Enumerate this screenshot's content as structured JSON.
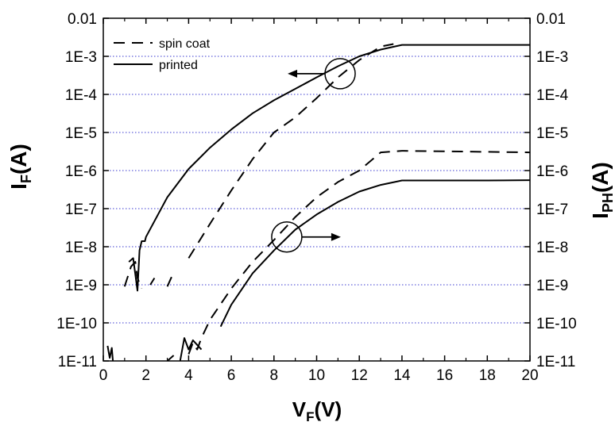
{
  "chart_data": {
    "type": "line",
    "xlabel": {
      "main": "V",
      "sub": "F",
      "unit": "(V)"
    },
    "ylabel_left": {
      "main": "I",
      "sub": "F",
      "unit": "(A)"
    },
    "ylabel_right": {
      "main": "I",
      "sub": "PH",
      "unit": "(A)"
    },
    "xlim": [
      0,
      20
    ],
    "ylim": [
      1e-11,
      0.01
    ],
    "yscale": "log",
    "grid": "horizontal dotted",
    "grid_color": "#3a3ad0",
    "line_color": "#000000",
    "x_ticks": [
      0,
      2,
      4,
      6,
      8,
      10,
      12,
      14,
      16,
      18,
      20
    ],
    "x_tick_labels": [
      "0",
      "2",
      "4",
      "6",
      "8",
      "10",
      "12",
      "14",
      "16",
      "18",
      "20"
    ],
    "y_ticks": [
      1e-11,
      1e-10,
      1e-09,
      1e-08,
      1e-07,
      1e-06,
      1e-05,
      0.0001,
      0.001,
      0.01
    ],
    "y_tick_labels": [
      "1E-11",
      "1E-10",
      "1E-9",
      "1E-8",
      "1E-7",
      "1E-6",
      "1E-5",
      "1E-4",
      "1E-3",
      "0.01"
    ],
    "legend": {
      "position": "top-left",
      "entries": [
        {
          "label": "spin coat",
          "dash": "dashed"
        },
        {
          "label": "printed",
          "dash": "solid"
        }
      ]
    },
    "series": [
      {
        "label": "spin coat",
        "axis": "left",
        "dash": "dashed",
        "segments": [
          [
            [
              1.0,
              9e-10
            ],
            [
              1.3,
              3e-09
            ],
            [
              1.5,
              4e-09
            ],
            [
              1.6,
              1.5e-09
            ],
            [
              1.8,
              8e-10
            ]
          ],
          [
            [
              2.2,
              1e-09
            ],
            [
              2.4,
              1.5e-09
            ]
          ],
          [
            [
              3.0,
              9e-10
            ],
            [
              3.2,
              1.6e-09
            ]
          ],
          [
            [
              4.0,
              5e-09
            ],
            [
              5.0,
              4e-08
            ],
            [
              6.0,
              3e-07
            ],
            [
              7.0,
              2e-06
            ],
            [
              8.0,
              1e-05
            ],
            [
              9.0,
              2.5e-05
            ],
            [
              10.0,
              8e-05
            ],
            [
              11.0,
              0.00028
            ],
            [
              12.0,
              0.0008
            ],
            [
              13.0,
              0.0018
            ],
            [
              13.6,
              0.0021
            ]
          ]
        ]
      },
      {
        "label": "printed",
        "axis": "left",
        "dash": "solid",
        "segments": [
          [
            [
              1.2,
              4e-09
            ],
            [
              1.4,
              5e-09
            ],
            [
              1.6,
              7e-10
            ],
            [
              1.7,
              8e-09
            ],
            [
              1.8,
              1.4e-08
            ],
            [
              1.95,
              1.4e-08
            ],
            [
              2.0,
              1.8e-08
            ],
            [
              3.0,
              2e-07
            ],
            [
              4.0,
              1.1e-06
            ],
            [
              5.0,
              4e-06
            ],
            [
              6.0,
              1.2e-05
            ],
            [
              7.0,
              3.2e-05
            ],
            [
              8.0,
              7e-05
            ],
            [
              9.0,
              0.00014
            ],
            [
              10.0,
              0.00028
            ],
            [
              11.0,
              0.00055
            ],
            [
              12.0,
              0.001
            ],
            [
              13.0,
              0.0015
            ],
            [
              14.0,
              0.002
            ],
            [
              16.0,
              0.002
            ],
            [
              18.0,
              0.002
            ],
            [
              20.0,
              0.002
            ]
          ]
        ]
      },
      {
        "label": "spin coat",
        "axis": "right",
        "dash": "dashed",
        "segments": [
          [
            [
              3.0,
              1e-11
            ],
            [
              3.3,
              1.4e-11
            ]
          ],
          [
            [
              4.0,
              1.5e-11
            ],
            [
              4.2,
              3e-11
            ],
            [
              4.4,
              2e-11
            ],
            [
              4.6,
              4e-11
            ],
            [
              5.0,
              1.2e-10
            ],
            [
              6.0,
              8e-10
            ],
            [
              7.0,
              4e-09
            ],
            [
              8.0,
              1.5e-08
            ],
            [
              9.0,
              6e-08
            ],
            [
              10.0,
              2e-07
            ],
            [
              11.0,
              5e-07
            ],
            [
              12.0,
              1e-06
            ],
            [
              13.0,
              3e-06
            ],
            [
              14.0,
              3.3e-06
            ],
            [
              16.0,
              3.2e-06
            ],
            [
              18.0,
              3.1e-06
            ],
            [
              20.0,
              3e-06
            ]
          ]
        ]
      },
      {
        "label": "printed",
        "axis": "right",
        "dash": "solid",
        "segments": [
          [
            [
              0.2,
              2.5e-11
            ],
            [
              0.3,
              1.2e-11
            ],
            [
              0.4,
              2.2e-11
            ],
            [
              0.45,
              1e-11
            ]
          ],
          [
            [
              3.6,
              1e-11
            ],
            [
              3.8,
              4e-11
            ],
            [
              4.0,
              2e-11
            ],
            [
              4.2,
              3.5e-11
            ],
            [
              4.6,
              2e-11
            ]
          ],
          [
            [
              5.5,
              8e-11
            ],
            [
              6.0,
              3e-10
            ],
            [
              7.0,
              2e-09
            ],
            [
              8.0,
              8e-09
            ],
            [
              9.0,
              2.8e-08
            ],
            [
              10.0,
              7e-08
            ],
            [
              11.0,
              1.5e-07
            ],
            [
              12.0,
              2.8e-07
            ],
            [
              13.0,
              4.2e-07
            ],
            [
              14.0,
              5.5e-07
            ],
            [
              16.0,
              5.5e-07
            ],
            [
              18.0,
              5.5e-07
            ],
            [
              20.0,
              5.6e-07
            ]
          ]
        ]
      }
    ],
    "annotations": [
      {
        "name": "circle-left-arrow",
        "x": 11.1,
        "y": 0.00035,
        "arrow": "left"
      },
      {
        "name": "circle-right-arrow",
        "x": 8.6,
        "y": 1.8e-08,
        "arrow": "right"
      }
    ]
  }
}
